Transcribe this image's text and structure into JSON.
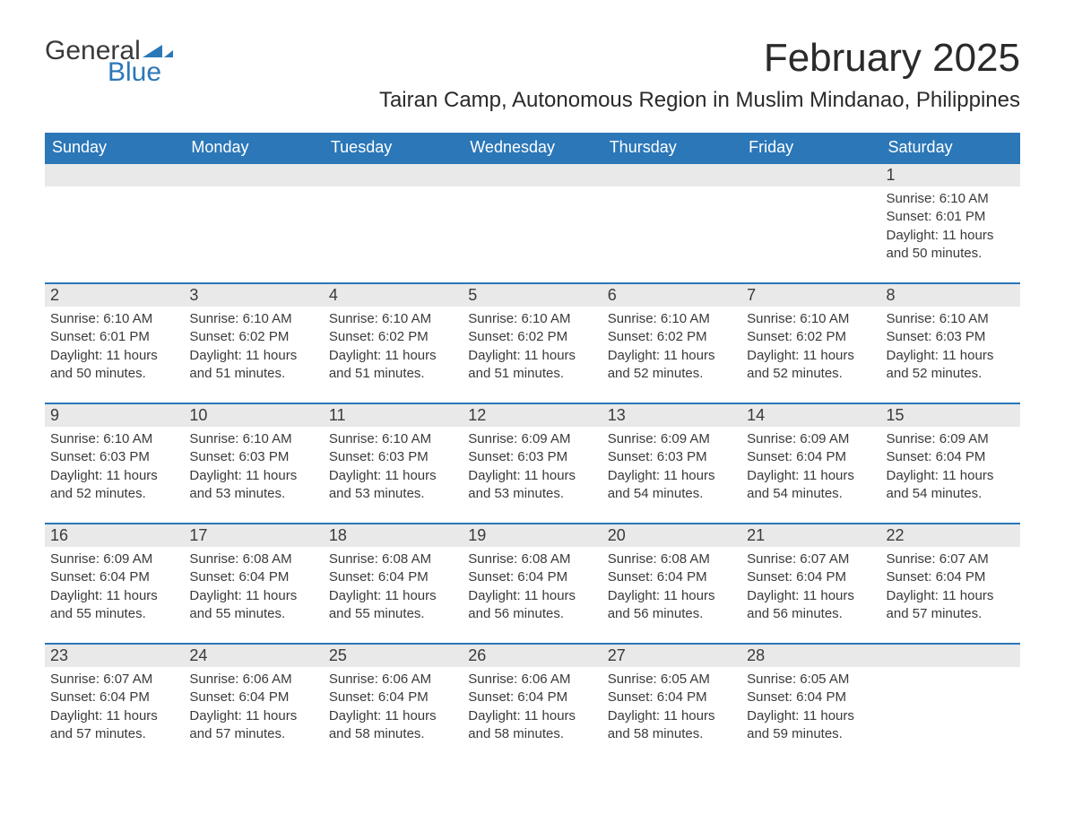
{
  "logo": {
    "text1": "General",
    "text2": "Blue"
  },
  "title": "February 2025",
  "location": "Tairan Camp, Autonomous Region in Muslim Mindanao, Philippines",
  "colors": {
    "header_bg": "#2b77b8",
    "header_fg": "#ffffff",
    "day_bg": "#e9e9e9",
    "rule": "#2b77b8",
    "text": "#3a3a3a",
    "page_bg": "#ffffff"
  },
  "weekdays": [
    "Sunday",
    "Monday",
    "Tuesday",
    "Wednesday",
    "Thursday",
    "Friday",
    "Saturday"
  ],
  "weeks": [
    [
      null,
      null,
      null,
      null,
      null,
      null,
      {
        "day": "1",
        "sunrise": "Sunrise: 6:10 AM",
        "sunset": "Sunset: 6:01 PM",
        "daylight": "Daylight: 11 hours and 50 minutes."
      }
    ],
    [
      {
        "day": "2",
        "sunrise": "Sunrise: 6:10 AM",
        "sunset": "Sunset: 6:01 PM",
        "daylight": "Daylight: 11 hours and 50 minutes."
      },
      {
        "day": "3",
        "sunrise": "Sunrise: 6:10 AM",
        "sunset": "Sunset: 6:02 PM",
        "daylight": "Daylight: 11 hours and 51 minutes."
      },
      {
        "day": "4",
        "sunrise": "Sunrise: 6:10 AM",
        "sunset": "Sunset: 6:02 PM",
        "daylight": "Daylight: 11 hours and 51 minutes."
      },
      {
        "day": "5",
        "sunrise": "Sunrise: 6:10 AM",
        "sunset": "Sunset: 6:02 PM",
        "daylight": "Daylight: 11 hours and 51 minutes."
      },
      {
        "day": "6",
        "sunrise": "Sunrise: 6:10 AM",
        "sunset": "Sunset: 6:02 PM",
        "daylight": "Daylight: 11 hours and 52 minutes."
      },
      {
        "day": "7",
        "sunrise": "Sunrise: 6:10 AM",
        "sunset": "Sunset: 6:02 PM",
        "daylight": "Daylight: 11 hours and 52 minutes."
      },
      {
        "day": "8",
        "sunrise": "Sunrise: 6:10 AM",
        "sunset": "Sunset: 6:03 PM",
        "daylight": "Daylight: 11 hours and 52 minutes."
      }
    ],
    [
      {
        "day": "9",
        "sunrise": "Sunrise: 6:10 AM",
        "sunset": "Sunset: 6:03 PM",
        "daylight": "Daylight: 11 hours and 52 minutes."
      },
      {
        "day": "10",
        "sunrise": "Sunrise: 6:10 AM",
        "sunset": "Sunset: 6:03 PM",
        "daylight": "Daylight: 11 hours and 53 minutes."
      },
      {
        "day": "11",
        "sunrise": "Sunrise: 6:10 AM",
        "sunset": "Sunset: 6:03 PM",
        "daylight": "Daylight: 11 hours and 53 minutes."
      },
      {
        "day": "12",
        "sunrise": "Sunrise: 6:09 AM",
        "sunset": "Sunset: 6:03 PM",
        "daylight": "Daylight: 11 hours and 53 minutes."
      },
      {
        "day": "13",
        "sunrise": "Sunrise: 6:09 AM",
        "sunset": "Sunset: 6:03 PM",
        "daylight": "Daylight: 11 hours and 54 minutes."
      },
      {
        "day": "14",
        "sunrise": "Sunrise: 6:09 AM",
        "sunset": "Sunset: 6:04 PM",
        "daylight": "Daylight: 11 hours and 54 minutes."
      },
      {
        "day": "15",
        "sunrise": "Sunrise: 6:09 AM",
        "sunset": "Sunset: 6:04 PM",
        "daylight": "Daylight: 11 hours and 54 minutes."
      }
    ],
    [
      {
        "day": "16",
        "sunrise": "Sunrise: 6:09 AM",
        "sunset": "Sunset: 6:04 PM",
        "daylight": "Daylight: 11 hours and 55 minutes."
      },
      {
        "day": "17",
        "sunrise": "Sunrise: 6:08 AM",
        "sunset": "Sunset: 6:04 PM",
        "daylight": "Daylight: 11 hours and 55 minutes."
      },
      {
        "day": "18",
        "sunrise": "Sunrise: 6:08 AM",
        "sunset": "Sunset: 6:04 PM",
        "daylight": "Daylight: 11 hours and 55 minutes."
      },
      {
        "day": "19",
        "sunrise": "Sunrise: 6:08 AM",
        "sunset": "Sunset: 6:04 PM",
        "daylight": "Daylight: 11 hours and 56 minutes."
      },
      {
        "day": "20",
        "sunrise": "Sunrise: 6:08 AM",
        "sunset": "Sunset: 6:04 PM",
        "daylight": "Daylight: 11 hours and 56 minutes."
      },
      {
        "day": "21",
        "sunrise": "Sunrise: 6:07 AM",
        "sunset": "Sunset: 6:04 PM",
        "daylight": "Daylight: 11 hours and 56 minutes."
      },
      {
        "day": "22",
        "sunrise": "Sunrise: 6:07 AM",
        "sunset": "Sunset: 6:04 PM",
        "daylight": "Daylight: 11 hours and 57 minutes."
      }
    ],
    [
      {
        "day": "23",
        "sunrise": "Sunrise: 6:07 AM",
        "sunset": "Sunset: 6:04 PM",
        "daylight": "Daylight: 11 hours and 57 minutes."
      },
      {
        "day": "24",
        "sunrise": "Sunrise: 6:06 AM",
        "sunset": "Sunset: 6:04 PM",
        "daylight": "Daylight: 11 hours and 57 minutes."
      },
      {
        "day": "25",
        "sunrise": "Sunrise: 6:06 AM",
        "sunset": "Sunset: 6:04 PM",
        "daylight": "Daylight: 11 hours and 58 minutes."
      },
      {
        "day": "26",
        "sunrise": "Sunrise: 6:06 AM",
        "sunset": "Sunset: 6:04 PM",
        "daylight": "Daylight: 11 hours and 58 minutes."
      },
      {
        "day": "27",
        "sunrise": "Sunrise: 6:05 AM",
        "sunset": "Sunset: 6:04 PM",
        "daylight": "Daylight: 11 hours and 58 minutes."
      },
      {
        "day": "28",
        "sunrise": "Sunrise: 6:05 AM",
        "sunset": "Sunset: 6:04 PM",
        "daylight": "Daylight: 11 hours and 59 minutes."
      },
      null
    ]
  ]
}
